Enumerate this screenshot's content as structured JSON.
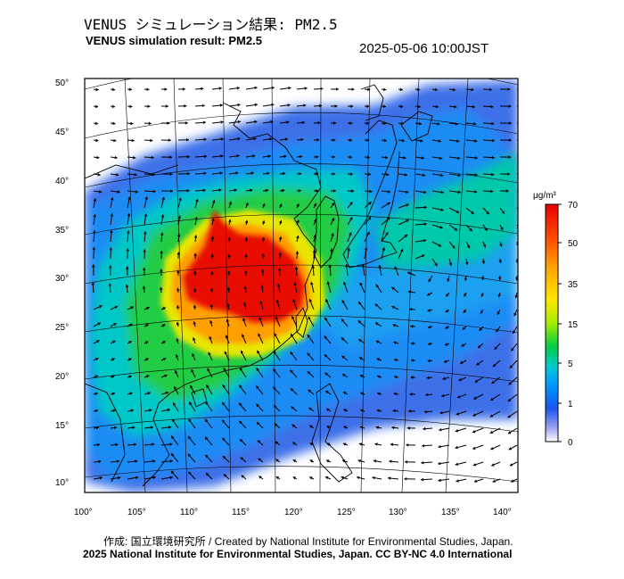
{
  "title_jp": "VENUS シミュレーション結果: PM2.5",
  "title_en": "VENUS simulation result: PM2.5",
  "timestamp": "2025-05-06 10:00JST",
  "map": {
    "lon_ticks": [
      "100°",
      "105°",
      "110°",
      "115°",
      "120°",
      "125°",
      "130°",
      "135°",
      "140°"
    ],
    "lat_ticks": [
      "50°",
      "45°",
      "40°",
      "35°",
      "30°",
      "25°",
      "20°",
      "15°",
      "10°"
    ],
    "lon_range": [
      100,
      142
    ],
    "lat_range": [
      9,
      51
    ]
  },
  "colorbar": {
    "unit": "μg/m³",
    "labels": [
      "70",
      "50",
      "35",
      "15",
      "5",
      "1",
      "0"
    ],
    "colors": [
      "#e60000",
      "#ff5a00",
      "#ff9f00",
      "#ffe600",
      "#a8ee00",
      "#00cc33",
      "#00cccc",
      "#0099ff",
      "#1a55ee",
      "#8890ee",
      "#ffffff"
    ]
  },
  "credit_line1": "作成: 国立環境研究所 / Created by National Institute for Environmental Studies, Japan.",
  "credit_line2": "2025 National Institute for Environmental Studies, Japan. CC BY-NC 4.0 International"
}
